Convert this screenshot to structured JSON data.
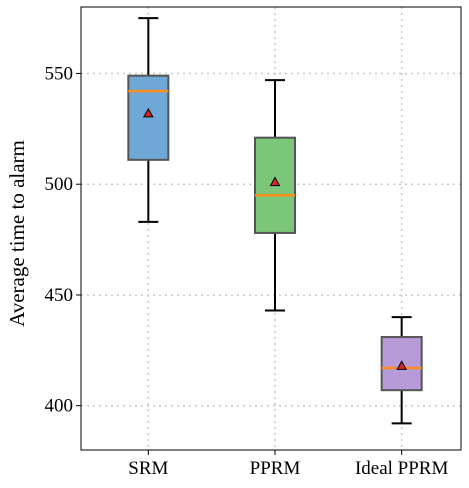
{
  "chart_data": {
    "type": "box",
    "title": "",
    "xlabel": "",
    "ylabel": "Average time to alarm",
    "ylim": [
      380,
      580
    ],
    "yticks": [
      400,
      450,
      500,
      550
    ],
    "grid": true,
    "categories": [
      "SRM",
      "PPRM",
      "Ideal PPRM"
    ],
    "boxes": [
      {
        "name": "SRM",
        "whisker_low": 483,
        "q1": 511,
        "median": 542,
        "q3": 549,
        "whisker_high": 575,
        "mean": 532,
        "color": "#6fa8d6"
      },
      {
        "name": "PPRM",
        "whisker_low": 443,
        "q1": 478,
        "median": 495,
        "q3": 521,
        "whisker_high": 547,
        "mean": 501,
        "color": "#7cc67a"
      },
      {
        "name": "Ideal PPRM",
        "whisker_low": 392,
        "q1": 407,
        "median": 417,
        "q3": 431,
        "whisker_high": 440,
        "mean": 418,
        "color": "#b79bd9"
      }
    ],
    "median_color": "#ff8c1a",
    "mean_marker_color": "#d62728"
  }
}
